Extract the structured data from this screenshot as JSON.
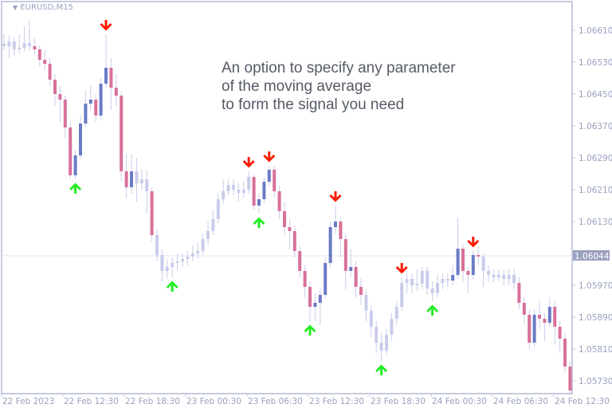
{
  "header": {
    "symbol": "EURUSD,M15"
  },
  "annotation": {
    "lines": [
      "An option to specify any parameter",
      "of the moving average",
      "to form the signal you need"
    ]
  },
  "colors": {
    "neutral": "#c9cdea",
    "bull": "#6a7bc6",
    "bear": "#d9709a",
    "sell_arrow": "#ff1a00",
    "buy_arrow": "#22ee22",
    "axis_text": "#9aa0bf",
    "frame": "#c8cbe0",
    "price_label_bg": "#9aa0bf"
  },
  "chart_data": {
    "type": "candlestick",
    "title": "EURUSD,M15",
    "ylim": [
      1.05698,
      1.06682
    ],
    "grid": false,
    "y_ticks": [
      "1.06610",
      "1.06530",
      "1.06450",
      "1.06370",
      "1.06290",
      "1.06210",
      "1.06130",
      "1.05970",
      "1.05890",
      "1.05810",
      "1.05730"
    ],
    "current_price": "1.06044",
    "x_ticks": [
      "22 Feb 2023",
      "22 Feb 12:30",
      "22 Feb 18:30",
      "23 Feb 00:30",
      "23 Feb 06:30",
      "23 Feb 12:30",
      "23 Feb 18:30",
      "24 Feb 00:30",
      "24 Feb 06:30",
      "24 Feb 12:30"
    ],
    "candles_format": [
      "open",
      "high",
      "low",
      "close",
      "highlighted"
    ],
    "candles": [
      [
        1.06576,
        1.066,
        1.0656,
        1.0657,
        0
      ],
      [
        1.0657,
        1.06596,
        1.0654,
        1.06582,
        0
      ],
      [
        1.06582,
        1.06592,
        1.06546,
        1.06562,
        0
      ],
      [
        1.06562,
        1.066,
        1.06552,
        1.06566,
        0
      ],
      [
        1.06566,
        1.0662,
        1.06556,
        1.06578,
        0
      ],
      [
        1.06578,
        1.06636,
        1.0656,
        1.0657,
        0
      ],
      [
        1.0657,
        1.0659,
        1.0655,
        1.06562,
        1
      ],
      [
        1.06562,
        1.06572,
        1.0652,
        1.06536,
        1
      ],
      [
        1.06536,
        1.0656,
        1.0651,
        1.06526,
        1
      ],
      [
        1.06526,
        1.0654,
        1.0647,
        1.06486,
        1
      ],
      [
        1.06486,
        1.065,
        1.0642,
        1.0645,
        1
      ],
      [
        1.0645,
        1.0647,
        1.0638,
        1.06436,
        1
      ],
      [
        1.06436,
        1.06446,
        1.0634,
        1.06366,
        1
      ],
      [
        1.06366,
        1.0638,
        1.06236,
        1.06246,
        1
      ],
      [
        1.06246,
        1.0631,
        1.06236,
        1.06296,
        1
      ],
      [
        1.06296,
        1.06396,
        1.06286,
        1.06376,
        1
      ],
      [
        1.06376,
        1.0646,
        1.06366,
        1.06426,
        1
      ],
      [
        1.06426,
        1.0647,
        1.0641,
        1.06436,
        1
      ],
      [
        1.06436,
        1.0645,
        1.0638,
        1.06396,
        1
      ],
      [
        1.06396,
        1.0649,
        1.06386,
        1.06476,
        1
      ],
      [
        1.06476,
        1.066,
        1.06466,
        1.06516,
        1
      ],
      [
        1.06516,
        1.0654,
        1.0641,
        1.06466,
        1
      ],
      [
        1.06466,
        1.065,
        1.0642,
        1.06446,
        1
      ],
      [
        1.06446,
        1.06456,
        1.0623,
        1.06256,
        1
      ],
      [
        1.06256,
        1.063,
        1.0619,
        1.06216,
        1
      ],
      [
        1.06216,
        1.063,
        1.062,
        1.06256,
        1
      ],
      [
        1.06256,
        1.0629,
        1.0618,
        1.06226,
        0
      ],
      [
        1.06226,
        1.0626,
        1.0621,
        1.06236,
        0
      ],
      [
        1.06236,
        1.0626,
        1.0615,
        1.06206,
        0
      ],
      [
        1.06206,
        1.06216,
        1.0608,
        1.06096,
        1
      ],
      [
        1.06096,
        1.0611,
        1.0603,
        1.06046,
        0
      ],
      [
        1.06046,
        1.0606,
        1.0598,
        1.06006,
        0
      ],
      [
        1.06006,
        1.06036,
        1.05986,
        1.06016,
        0
      ],
      [
        1.06016,
        1.0604,
        1.0599,
        1.06026,
        0
      ],
      [
        1.06026,
        1.0605,
        1.06006,
        1.0603,
        0
      ],
      [
        1.0603,
        1.0605,
        1.06016,
        1.06036,
        0
      ],
      [
        1.06036,
        1.06056,
        1.0602,
        1.06042,
        0
      ],
      [
        1.06042,
        1.0607,
        1.0603,
        1.0605,
        0
      ],
      [
        1.0605,
        1.06076,
        1.06036,
        1.06056,
        0
      ],
      [
        1.06056,
        1.061,
        1.06046,
        1.06086,
        0
      ],
      [
        1.06086,
        1.0613,
        1.0607,
        1.06106,
        0
      ],
      [
        1.06106,
        1.0616,
        1.06096,
        1.06136,
        0
      ],
      [
        1.06136,
        1.062,
        1.06126,
        1.06186,
        0
      ],
      [
        1.06186,
        1.06236,
        1.06176,
        1.06206,
        0
      ],
      [
        1.06206,
        1.06236,
        1.06196,
        1.06222,
        0
      ],
      [
        1.06222,
        1.06236,
        1.06196,
        1.0621,
        0
      ],
      [
        1.0621,
        1.06226,
        1.0618,
        1.06202,
        0
      ],
      [
        1.06202,
        1.0623,
        1.0619,
        1.0621,
        0
      ],
      [
        1.0621,
        1.06256,
        1.062,
        1.06242,
        0
      ],
      [
        1.06242,
        1.0625,
        1.0616,
        1.0617,
        1
      ],
      [
        1.0617,
        1.062,
        1.0615,
        1.06186,
        1
      ],
      [
        1.06186,
        1.0624,
        1.06176,
        1.0623,
        1
      ],
      [
        1.0623,
        1.0627,
        1.0622,
        1.0626,
        1
      ],
      [
        1.0626,
        1.0627,
        1.0619,
        1.06206,
        1
      ],
      [
        1.06206,
        1.0622,
        1.06136,
        1.06156,
        1
      ],
      [
        1.06156,
        1.0618,
        1.06096,
        1.06116,
        1
      ],
      [
        1.06116,
        1.06136,
        1.0606,
        1.06106,
        1
      ],
      [
        1.06106,
        1.0612,
        1.0604,
        1.06056,
        1
      ],
      [
        1.06056,
        1.0607,
        1.0599,
        1.06006,
        1
      ],
      [
        1.06006,
        1.0602,
        1.0594,
        1.05966,
        1
      ],
      [
        1.05966,
        1.0598,
        1.0588,
        1.05916,
        1
      ],
      [
        1.05916,
        1.0595,
        1.0588,
        1.05926,
        1
      ],
      [
        1.05926,
        1.05966,
        1.0587,
        1.05946,
        1
      ],
      [
        1.05946,
        1.0604,
        1.05936,
        1.06026,
        1
      ],
      [
        1.06026,
        1.0613,
        1.06016,
        1.06116,
        1
      ],
      [
        1.06116,
        1.0617,
        1.061,
        1.0613,
        1
      ],
      [
        1.0613,
        1.0614,
        1.0604,
        1.06086,
        1
      ],
      [
        1.06086,
        1.061,
        1.0596,
        1.06006,
        1
      ],
      [
        1.06006,
        1.0606,
        1.0599,
        1.06016,
        1
      ],
      [
        1.06016,
        1.0603,
        1.0594,
        1.05966,
        1
      ],
      [
        1.05966,
        1.0599,
        1.0592,
        1.05946,
        1
      ],
      [
        1.05946,
        1.0596,
        1.0588,
        1.05906,
        0
      ],
      [
        1.05906,
        1.0592,
        1.0584,
        1.05866,
        0
      ],
      [
        1.05866,
        1.0588,
        1.058,
        1.05826,
        0
      ],
      [
        1.05826,
        1.0585,
        1.0578,
        1.05806,
        0
      ],
      [
        1.05806,
        1.0586,
        1.05796,
        1.05846,
        0
      ],
      [
        1.05846,
        1.059,
        1.0583,
        1.05886,
        0
      ],
      [
        1.05886,
        1.0593,
        1.0587,
        1.05916,
        0
      ],
      [
        1.05916,
        1.0599,
        1.05906,
        1.05976,
        0
      ],
      [
        1.05976,
        1.06,
        1.0595,
        1.05986,
        0
      ],
      [
        1.05986,
        1.06,
        1.0595,
        1.0597,
        0
      ],
      [
        1.0597,
        1.0601,
        1.05956,
        1.05974,
        0
      ],
      [
        1.05974,
        1.06016,
        1.0596,
        1.06006,
        0
      ],
      [
        1.06006,
        1.06016,
        1.05946,
        1.05962,
        0
      ],
      [
        1.05962,
        1.0598,
        1.0593,
        1.0595,
        0
      ],
      [
        1.0595,
        1.05996,
        1.0594,
        1.05976,
        0
      ],
      [
        1.05976,
        1.06,
        1.0596,
        1.05986,
        0
      ],
      [
        1.05986,
        1.06,
        1.05966,
        1.05982,
        0
      ],
      [
        1.05982,
        1.0602,
        1.0597,
        1.05996,
        1
      ],
      [
        1.05996,
        1.0614,
        1.05986,
        1.06062,
        1
      ],
      [
        1.06062,
        1.06072,
        1.0598,
        1.06006,
        1
      ],
      [
        1.06006,
        1.06016,
        1.0595,
        1.05996,
        1
      ],
      [
        1.05996,
        1.06056,
        1.05986,
        1.06046,
        1
      ],
      [
        1.06046,
        1.06066,
        1.0602,
        1.06042,
        1
      ],
      [
        1.06042,
        1.0605,
        1.05966,
        1.06006,
        0
      ],
      [
        1.06006,
        1.0602,
        1.0598,
        1.05996,
        0
      ],
      [
        1.05996,
        1.0601,
        1.05976,
        1.0599,
        0
      ],
      [
        1.0599,
        1.0601,
        1.0598,
        1.05996,
        0
      ],
      [
        1.05996,
        1.0601,
        1.0597,
        1.05986,
        0
      ],
      [
        1.05986,
        1.0601,
        1.0597,
        1.05996,
        0
      ],
      [
        1.05996,
        1.0601,
        1.0596,
        1.05976,
        0
      ],
      [
        1.05976,
        1.0599,
        1.0591,
        1.05926,
        1
      ],
      [
        1.05926,
        1.0594,
        1.0587,
        1.05896,
        1
      ],
      [
        1.05896,
        1.0591,
        1.0581,
        1.05826,
        1
      ],
      [
        1.05826,
        1.0591,
        1.05816,
        1.05896,
        1
      ],
      [
        1.05896,
        1.0593,
        1.0586,
        1.05886,
        1
      ],
      [
        1.05886,
        1.059,
        1.0583,
        1.05876,
        1
      ],
      [
        1.05876,
        1.0594,
        1.05866,
        1.05916,
        1
      ],
      [
        1.05916,
        1.0593,
        1.0582,
        1.05866,
        1
      ],
      [
        1.05866,
        1.0588,
        1.058,
        1.05836,
        1
      ],
      [
        1.05836,
        1.0585,
        1.0575,
        1.05766,
        1
      ],
      [
        1.05766,
        1.0578,
        1.05696,
        1.05706,
        1
      ]
    ],
    "signals": [
      {
        "candle": 14,
        "type": "buy"
      },
      {
        "candle": 20,
        "type": "sell"
      },
      {
        "candle": 33,
        "type": "buy"
      },
      {
        "candle": 48,
        "type": "sell"
      },
      {
        "candle": 50,
        "type": "buy"
      },
      {
        "candle": 52,
        "type": "sell"
      },
      {
        "candle": 60,
        "type": "buy"
      },
      {
        "candle": 65,
        "type": "sell"
      },
      {
        "candle": 74,
        "type": "buy"
      },
      {
        "candle": 78,
        "type": "sell"
      },
      {
        "candle": 84,
        "type": "buy"
      },
      {
        "candle": 92,
        "type": "sell"
      }
    ]
  }
}
